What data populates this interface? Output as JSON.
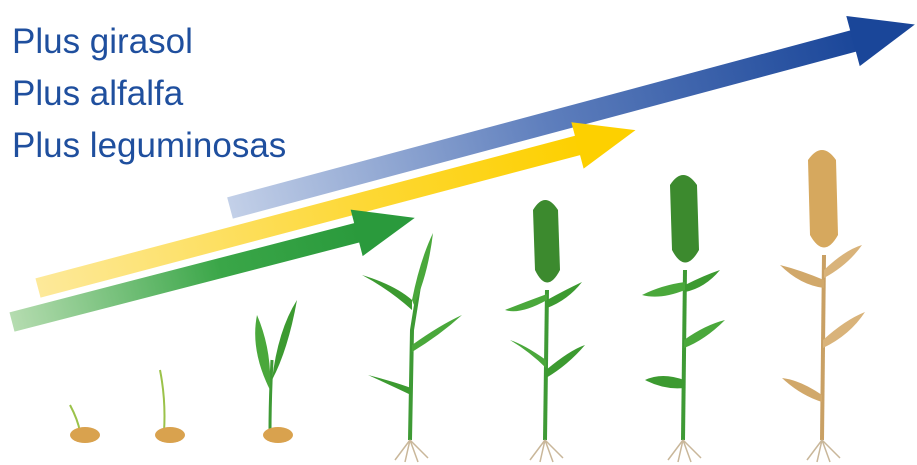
{
  "labels": [
    "Plus girasol",
    "Plus alfalfa",
    "Plus leguminosas"
  ]
}
